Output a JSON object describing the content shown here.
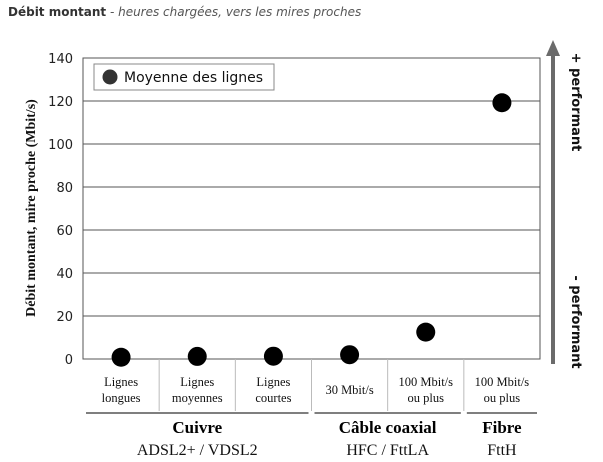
{
  "header": {
    "title_bold": "Débit montant",
    "title_italic": " - heures chargées, vers les mires proches"
  },
  "chart_data": {
    "type": "scatter",
    "ylabel": "Débit montant, mire proche (Mbit/s)",
    "ylim": [
      0,
      140
    ],
    "yticks": [
      0,
      20,
      40,
      60,
      80,
      100,
      120,
      140
    ],
    "grid": true,
    "legend_position": "top-left",
    "categories": [
      [
        "Lignes",
        "longues"
      ],
      [
        "Lignes",
        "moyennes"
      ],
      [
        "Lignes",
        "courtes"
      ],
      [
        "30 Mbit/s"
      ],
      [
        "100 Mbit/s",
        "ou plus"
      ],
      [
        "100 Mbit/s",
        "ou plus"
      ]
    ],
    "groups": [
      {
        "name": "Cuivre",
        "subtitle": "ADSL2+ / VDSL2",
        "span": [
          0,
          2
        ]
      },
      {
        "name": "Câble coaxial",
        "subtitle": "HFC / FttLA",
        "span": [
          3,
          4
        ]
      },
      {
        "name": "Fibre",
        "subtitle": "FttH",
        "span": [
          5,
          5
        ]
      }
    ],
    "series": [
      {
        "name": "Moyenne des lignes",
        "color": "#000000",
        "values": [
          0.8,
          1.2,
          1.3,
          2.0,
          12.5,
          119.2
        ]
      }
    ],
    "performance_arrow": {
      "top_label": "+ performant",
      "bottom_label": "- performant",
      "color": "#6b6b6b"
    }
  }
}
